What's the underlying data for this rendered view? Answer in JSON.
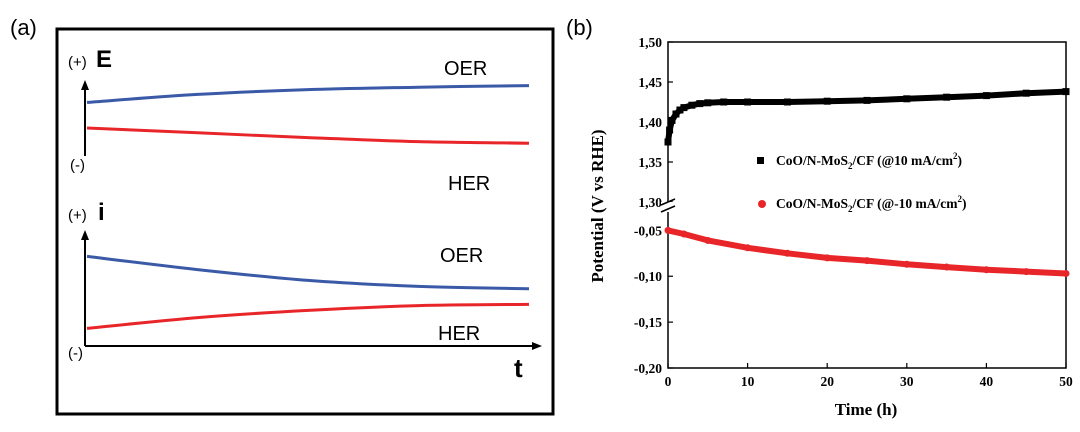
{
  "panel_a": {
    "label": "(a)",
    "top": {
      "axis_symbol": "E",
      "plus": "(+)",
      "minus": "(-)",
      "upper_label": "OER",
      "lower_label": "HER"
    },
    "bottom": {
      "axis_symbol": "i",
      "plus": "(+)",
      "minus": "(-)",
      "upper_label": "OER",
      "lower_label": "HER",
      "time_symbol": "t"
    },
    "colors": {
      "oer": "#3a5aa8",
      "her": "#e8262a"
    }
  },
  "panel_b": {
    "label": "(b)",
    "colors": {
      "oer": "#000000",
      "her": "#e8262a"
    }
  },
  "chart_data": [
    {
      "type": "line",
      "panel": "a-top",
      "ylabel": "E",
      "series": [
        {
          "name": "OER",
          "x": [
            0,
            0.25,
            0.5,
            0.75,
            1.0
          ],
          "values": [
            0.72,
            0.82,
            0.88,
            0.91,
            0.93
          ]
        },
        {
          "name": "HER",
          "x": [
            0,
            0.25,
            0.5,
            0.75,
            1.0
          ],
          "values": [
            0.4,
            0.34,
            0.28,
            0.23,
            0.21
          ]
        }
      ]
    },
    {
      "type": "line",
      "panel": "a-bottom",
      "xlabel": "t",
      "ylabel": "i",
      "series": [
        {
          "name": "OER",
          "x": [
            0,
            0.25,
            0.5,
            0.75,
            1.0
          ],
          "values": [
            0.78,
            0.67,
            0.58,
            0.53,
            0.51
          ]
        },
        {
          "name": "HER",
          "x": [
            0,
            0.25,
            0.5,
            0.75,
            1.0
          ],
          "values": [
            0.18,
            0.27,
            0.33,
            0.37,
            0.38
          ]
        }
      ]
    },
    {
      "type": "scatter",
      "panel": "b",
      "xlabel": "Time (h)",
      "ylabel": "Potential (V vs RHE)",
      "xlim": [
        0,
        50
      ],
      "xticks": [
        0,
        10,
        20,
        30,
        40,
        50
      ],
      "xtick_labels": [
        "0",
        "10",
        "20",
        "30",
        "40",
        "50"
      ],
      "ylim_upper": [
        1.3,
        1.5
      ],
      "yticks_upper": [
        1.3,
        1.35,
        1.4,
        1.45,
        1.5
      ],
      "ytick_labels_upper": [
        "1,30",
        "1,35",
        "1,40",
        "1,45",
        "1,50"
      ],
      "ylim_lower": [
        -0.2,
        -0.03
      ],
      "yticks_lower": [
        -0.2,
        -0.15,
        -0.1,
        -0.05
      ],
      "ytick_labels_lower": [
        "-0,20",
        "-0,15",
        "-0,10",
        "-0,05"
      ],
      "axis_break": true,
      "legend_position": "center-right",
      "series": [
        {
          "name": "CoO/N-MoS2/CF (@10 mA/cm2)",
          "legend_parts": [
            "CoO/N-MoS",
            "2",
            "/CF (@10 mA/cm",
            "2",
            ")"
          ],
          "x": [
            0,
            0.2,
            0.5,
            1,
            1.5,
            2,
            3,
            4,
            5,
            7,
            10,
            15,
            20,
            25,
            30,
            35,
            40,
            45,
            50
          ],
          "values": [
            1.375,
            1.39,
            1.402,
            1.41,
            1.415,
            1.418,
            1.421,
            1.423,
            1.424,
            1.425,
            1.425,
            1.425,
            1.426,
            1.427,
            1.429,
            1.431,
            1.433,
            1.436,
            1.438
          ]
        },
        {
          "name": "CoO/N-MoS2/CF (@-10 mA/cm2)",
          "legend_parts": [
            "CoO/N-MoS",
            "2",
            "/CF (@-10 mA/cm",
            "2",
            ")"
          ],
          "x": [
            0,
            2,
            5,
            10,
            15,
            20,
            25,
            30,
            35,
            40,
            45,
            50
          ],
          "values": [
            -0.05,
            -0.054,
            -0.061,
            -0.069,
            -0.075,
            -0.08,
            -0.083,
            -0.087,
            -0.09,
            -0.093,
            -0.095,
            -0.097
          ]
        }
      ]
    }
  ]
}
